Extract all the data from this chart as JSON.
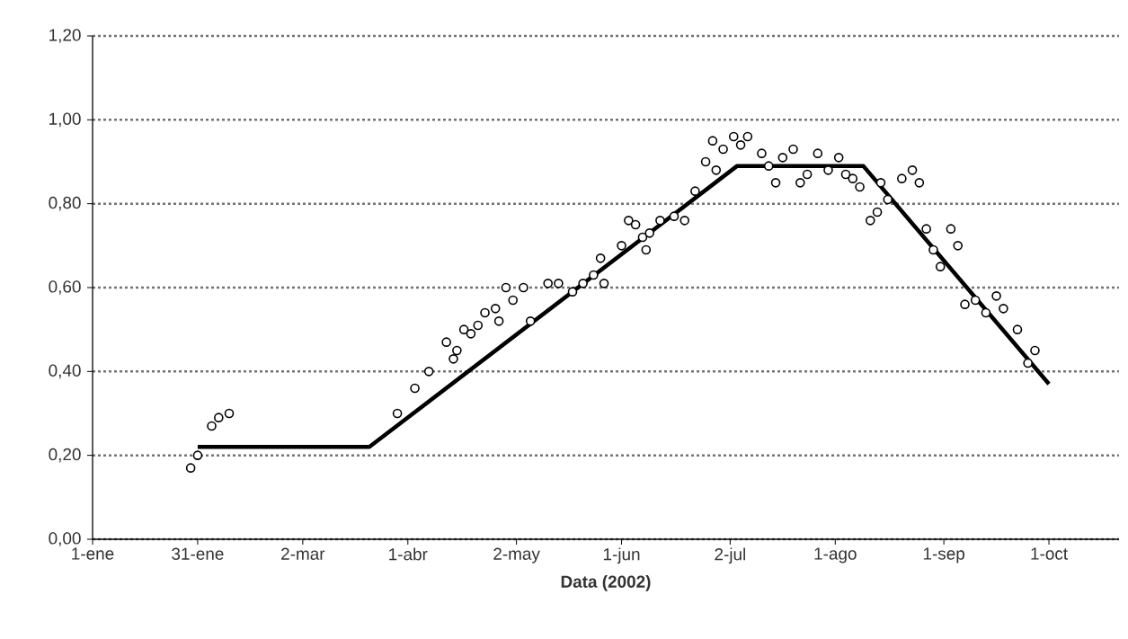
{
  "chart_data": {
    "type": "scatter",
    "xlabel": "Data (2002)",
    "xlim": [
      "2002-01-01",
      "2002-10-21"
    ],
    "xticks": [
      {
        "value": "2002-01-01",
        "label": "1-ene"
      },
      {
        "value": "2002-01-31",
        "label": "31-ene"
      },
      {
        "value": "2002-03-02",
        "label": "2-mar"
      },
      {
        "value": "2002-04-01",
        "label": "1-abr"
      },
      {
        "value": "2002-05-02",
        "label": "2-may"
      },
      {
        "value": "2002-06-01",
        "label": "1-jun"
      },
      {
        "value": "2002-07-02",
        "label": "2-jul"
      },
      {
        "value": "2002-08-01",
        "label": "1-ago"
      },
      {
        "value": "2002-09-01",
        "label": "1-sep"
      },
      {
        "value": "2002-10-01",
        "label": "1-oct"
      }
    ],
    "ylim": [
      0,
      1.2
    ],
    "yticks": [
      {
        "value": 0,
        "label": "0,00"
      },
      {
        "value": 0.2,
        "label": "0,20"
      },
      {
        "value": 0.4,
        "label": "0,40"
      },
      {
        "value": 0.6,
        "label": "0,60"
      },
      {
        "value": 0.8,
        "label": "0,80"
      },
      {
        "value": 1.0,
        "label": "1,00"
      },
      {
        "value": 1.2,
        "label": "1,20"
      }
    ],
    "grid": "y",
    "series": [
      {
        "marker": "circle",
        "color": "#000000",
        "x": [
          "2002-01-29",
          "2002-01-31",
          "2002-02-04",
          "2002-02-06",
          "2002-02-09",
          "2002-03-29",
          "2002-04-03",
          "2002-04-07",
          "2002-04-12",
          "2002-04-14",
          "2002-04-15",
          "2002-04-17",
          "2002-04-19",
          "2002-04-21",
          "2002-04-23",
          "2002-04-26",
          "2002-04-27",
          "2002-04-29",
          "2002-05-01",
          "2002-05-04",
          "2002-05-06",
          "2002-05-11",
          "2002-05-14",
          "2002-05-18",
          "2002-05-21",
          "2002-05-24",
          "2002-05-26",
          "2002-05-27",
          "2002-06-01",
          "2002-06-03",
          "2002-06-05",
          "2002-06-07",
          "2002-06-08",
          "2002-06-09",
          "2002-06-12",
          "2002-06-16",
          "2002-06-19",
          "2002-06-22",
          "2002-06-25",
          "2002-06-27",
          "2002-06-28",
          "2002-06-30",
          "2002-07-03",
          "2002-07-05",
          "2002-07-07",
          "2002-07-11",
          "2002-07-13",
          "2002-07-15",
          "2002-07-17",
          "2002-07-20",
          "2002-07-22",
          "2002-07-24",
          "2002-07-27",
          "2002-07-30",
          "2002-08-02",
          "2002-08-04",
          "2002-08-06",
          "2002-08-08",
          "2002-08-11",
          "2002-08-13",
          "2002-08-14",
          "2002-08-16",
          "2002-08-20",
          "2002-08-23",
          "2002-08-25",
          "2002-08-27",
          "2002-08-29",
          "2002-08-31",
          "2002-09-03",
          "2002-09-05",
          "2002-09-07",
          "2002-09-10",
          "2002-09-13",
          "2002-09-16",
          "2002-09-18",
          "2002-09-22",
          "2002-09-25",
          "2002-09-27"
        ],
        "values": [
          0.17,
          0.2,
          0.27,
          0.29,
          0.3,
          0.3,
          0.36,
          0.4,
          0.47,
          0.43,
          0.45,
          0.5,
          0.49,
          0.51,
          0.54,
          0.55,
          0.52,
          0.6,
          0.57,
          0.6,
          0.52,
          0.61,
          0.61,
          0.59,
          0.61,
          0.63,
          0.67,
          0.61,
          0.7,
          0.76,
          0.75,
          0.72,
          0.69,
          0.73,
          0.76,
          0.77,
          0.76,
          0.83,
          0.9,
          0.95,
          0.88,
          0.93,
          0.96,
          0.94,
          0.96,
          0.92,
          0.89,
          0.85,
          0.91,
          0.93,
          0.85,
          0.87,
          0.92,
          0.88,
          0.91,
          0.87,
          0.86,
          0.84,
          0.76,
          0.78,
          0.85,
          0.81,
          0.86,
          0.88,
          0.85,
          0.74,
          0.69,
          0.65,
          0.74,
          0.7,
          0.56,
          0.57,
          0.54,
          0.58,
          0.55,
          0.5,
          0.42,
          0.45
        ]
      },
      {
        "type": "line",
        "marker": "none",
        "color": "#000000",
        "x": [
          "2002-01-31",
          "2002-03-21",
          "2002-07-04",
          "2002-08-09",
          "2002-10-01"
        ],
        "values": [
          0.22,
          0.22,
          0.89,
          0.89,
          0.37
        ]
      }
    ]
  }
}
